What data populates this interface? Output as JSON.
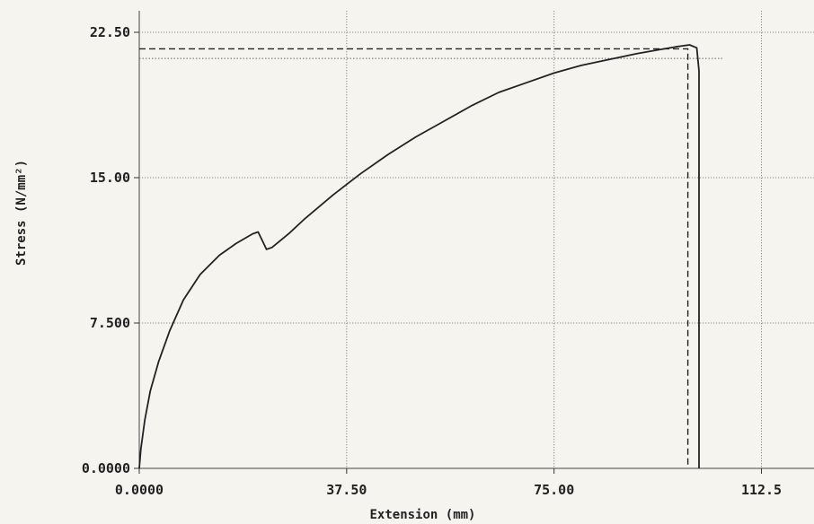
{
  "chart_data": {
    "type": "line",
    "title": "",
    "xlabel": "Extension (mm)",
    "ylabel": "Stress (N/mm²)",
    "x_ticks": [
      "0.0000",
      "37.50",
      "75.00",
      "112.5"
    ],
    "y_ticks": [
      "0.0000",
      "7.500",
      "15.00",
      "22.50"
    ],
    "xlim": [
      0,
      122
    ],
    "ylim": [
      0,
      22.5
    ],
    "grid": true,
    "series": [
      {
        "style": "solid",
        "points": [
          [
            0,
            0
          ],
          [
            0.3,
            1.0
          ],
          [
            1,
            2.5
          ],
          [
            2,
            4.0
          ],
          [
            3.5,
            5.5
          ],
          [
            5.5,
            7.1
          ],
          [
            8,
            8.7
          ],
          [
            11,
            10.0
          ],
          [
            14.5,
            11.0
          ],
          [
            17.5,
            11.6
          ],
          [
            20.5,
            12.1
          ],
          [
            21.5,
            12.2
          ],
          [
            22.5,
            11.6
          ],
          [
            23.0,
            11.3
          ],
          [
            24.0,
            11.4
          ],
          [
            27,
            12.1
          ],
          [
            30,
            12.9
          ],
          [
            35,
            14.1
          ],
          [
            40,
            15.2
          ],
          [
            45,
            16.2
          ],
          [
            50,
            17.1
          ],
          [
            55,
            17.9
          ],
          [
            60,
            18.7
          ],
          [
            65,
            19.4
          ],
          [
            70,
            19.9
          ],
          [
            75,
            20.4
          ],
          [
            80,
            20.8
          ],
          [
            85,
            21.1
          ],
          [
            90,
            21.4
          ],
          [
            94,
            21.6
          ],
          [
            97,
            21.75
          ],
          [
            99.5,
            21.85
          ],
          [
            100.8,
            21.7
          ],
          [
            101.2,
            20.5
          ],
          [
            101.2,
            0
          ]
        ]
      },
      {
        "style": "dashed",
        "points": [
          [
            0,
            21.65
          ],
          [
            99.2,
            21.65
          ],
          [
            99.2,
            0
          ]
        ]
      }
    ],
    "reference_lines": [
      {
        "style": "dotted",
        "y": 21.15
      }
    ]
  }
}
